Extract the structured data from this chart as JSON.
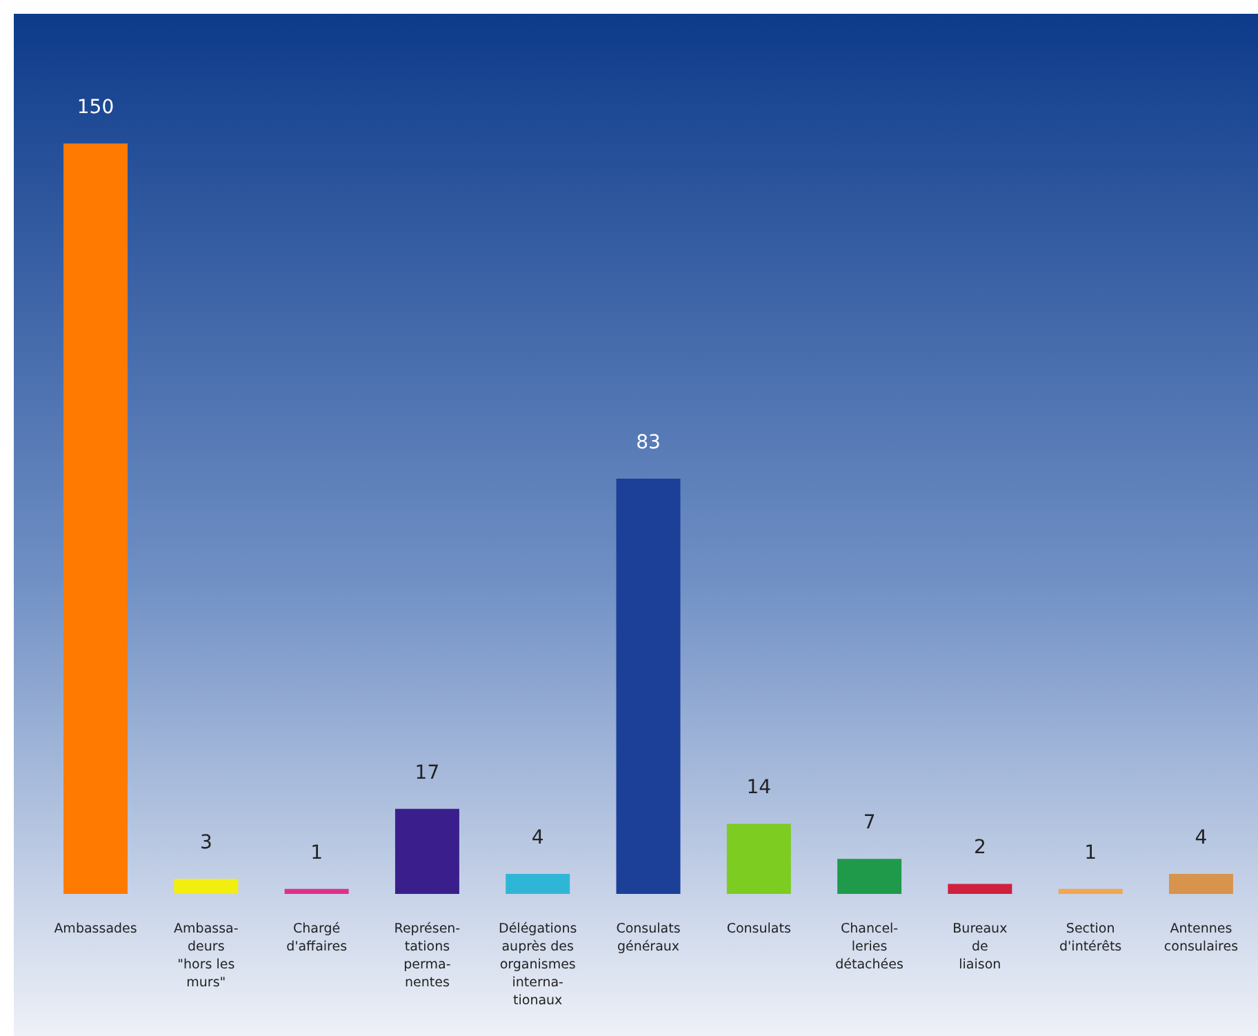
{
  "chart_data": {
    "type": "bar",
    "categories": [
      "Ambassades",
      "Ambassa-\ndeurs\n\"hors les\nmurs\"",
      "Chargé\nd'affaires",
      "Représen-\ntations\nperma-\nnentes",
      "Délégations\nauprès des\norganismes\ninterna-\ntionaux",
      "Consulats\ngénéraux",
      "Consulats",
      "Chancel-\nleries\ndétachées",
      "Bureaux\nde\nliaison",
      "Section\nd'intérêts",
      "Antennes\nconsulaires"
    ],
    "values": [
      150,
      3,
      1,
      17,
      4,
      83,
      14,
      7,
      2,
      1,
      4
    ],
    "colors": [
      "#ff7a00",
      "#f2ee10",
      "#e0308a",
      "#3a1f8c",
      "#2fb6d6",
      "#1c3f98",
      "#7ccc22",
      "#1f9a4a",
      "#d0203e",
      "#f2a650",
      "#d8944c"
    ],
    "data_labels": true
  }
}
